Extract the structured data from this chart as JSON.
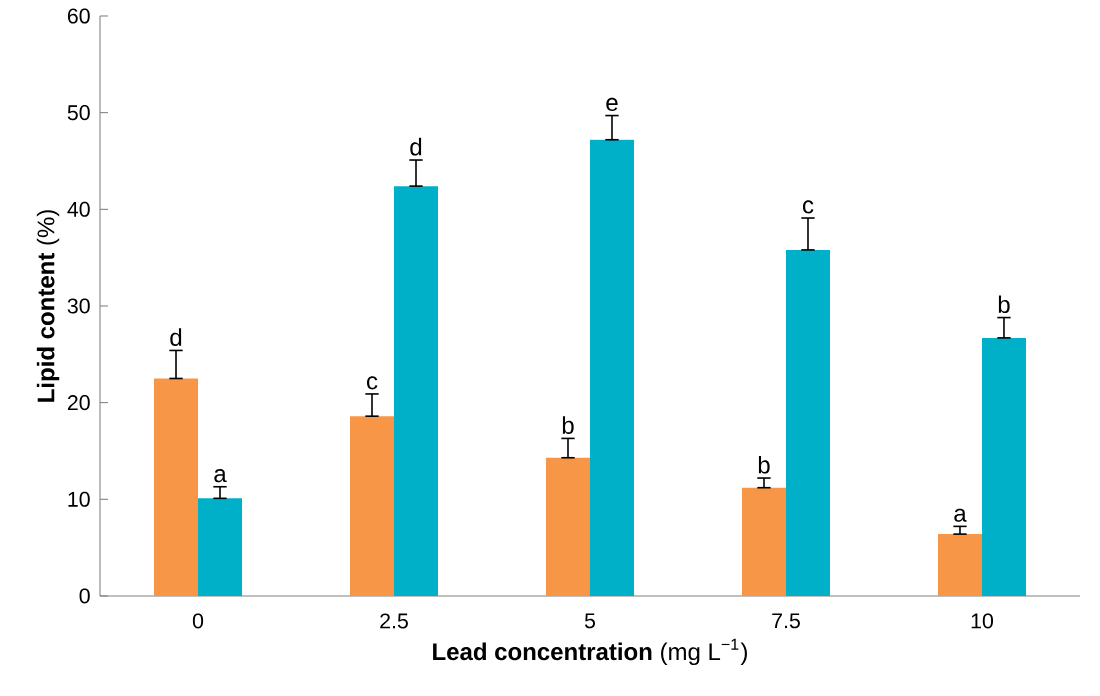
{
  "chart_data": {
    "type": "bar",
    "xlabel": "**Lead concentration** (mg L$^{−1}$)",
    "ylabel": "**Lipid content** (%)",
    "categories": [
      "0",
      "2.5",
      "5",
      "7.5",
      "10"
    ],
    "series": [
      {
        "color": "#f79646",
        "values": [
          22.5,
          18.6,
          14.3,
          11.2,
          6.4
        ],
        "errors": [
          [
            22.5,
            25.4
          ],
          [
            18.6,
            20.9
          ],
          [
            14.3,
            16.3
          ],
          [
            11.2,
            12.2
          ],
          [
            6.4,
            7.2
          ]
        ]
      },
      {
        "color": "#00b0c8",
        "values": [
          10.1,
          42.4,
          47.2,
          35.8,
          26.7
        ],
        "errors": [
          [
            10.1,
            11.3
          ],
          [
            42.4,
            45.1
          ],
          [
            47.2,
            49.7
          ],
          [
            35.8,
            39.1
          ],
          [
            26.7,
            28.8
          ]
        ]
      }
    ],
    "ylim": [
      0,
      60
    ],
    "yticks": [
      0,
      10,
      20,
      30,
      40,
      50,
      60
    ],
    "annotations": [
      {
        "text": "d",
        "x": "0",
        "y": 22.5
      },
      {
        "text": "c",
        "x": "2.5",
        "y": 18.6
      },
      {
        "text": "b",
        "x": "5",
        "y": 14.3
      },
      {
        "text": "b",
        "x": "7.5",
        "y": 11.2
      },
      {
        "text": "a",
        "x": "10",
        "y": 6.4
      },
      {
        "text": "a",
        "x": "0",
        "y": 10.1
      },
      {
        "text": "d",
        "x": "2.5",
        "y": 42.4
      },
      {
        "text": "e",
        "x": "5",
        "y": 47.2
      },
      {
        "text": "c",
        "x": "7.5",
        "y": 35.8
      },
      {
        "text": "b",
        "x": "10",
        "y": 26.7
      }
    ]
  }
}
